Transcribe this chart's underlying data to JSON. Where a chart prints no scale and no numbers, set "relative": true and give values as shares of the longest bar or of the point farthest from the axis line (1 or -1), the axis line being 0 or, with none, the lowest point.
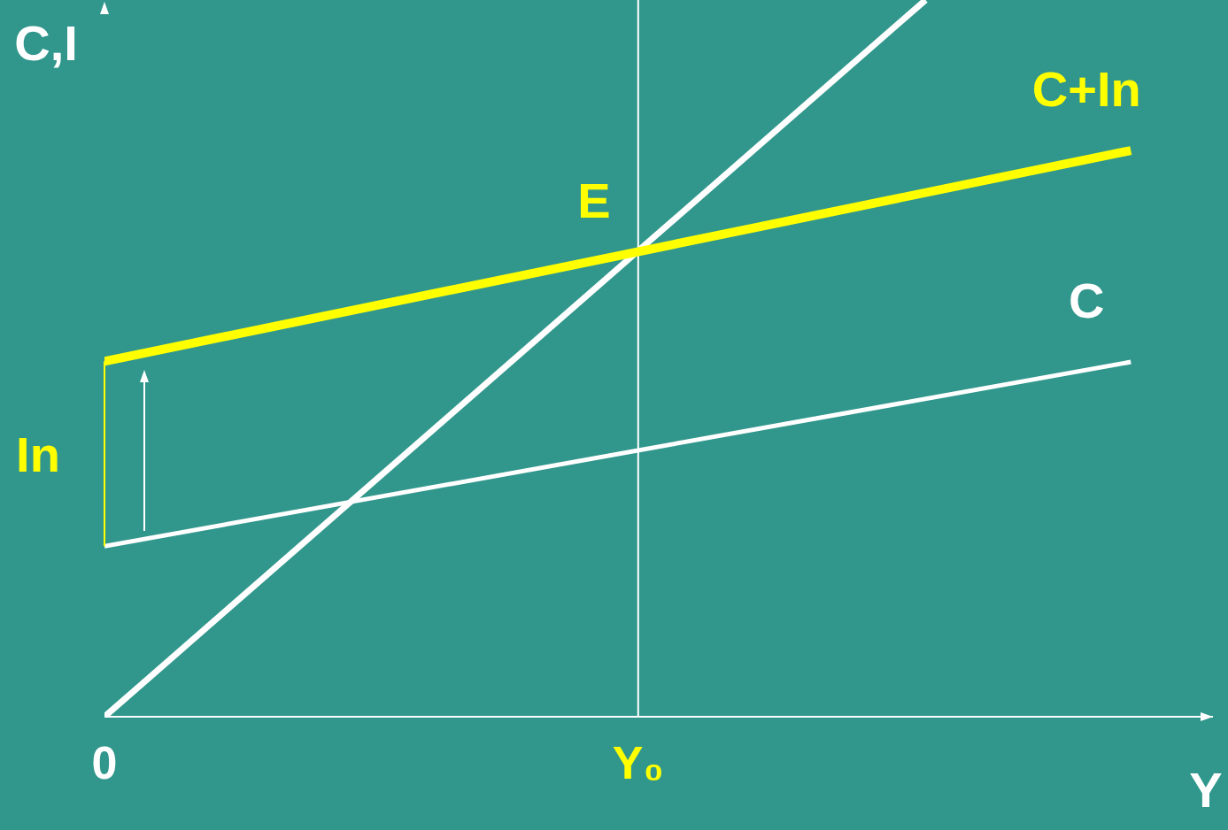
{
  "chart_data": {
    "type": "line",
    "relative": true,
    "xlabel": "Y",
    "ylabel": "C,I",
    "categories": [
      "0",
      null,
      null,
      null,
      null,
      null,
      null,
      null,
      null,
      null,
      null,
      null,
      null,
      "Y₀",
      null,
      null,
      null,
      null,
      null,
      null,
      null,
      null,
      null,
      null,
      null,
      null,
      null,
      null
    ],
    "series": [
      {
        "color": "#ffffff",
        "values": [
          0,
          null,
          null,
          null,
          null,
          null,
          null,
          null,
          null,
          null,
          null,
          null,
          null,
          null,
          null,
          null,
          null,
          null,
          null,
          null,
          1,
          null,
          null,
          null,
          null,
          null,
          null,
          null
        ]
      },
      {
        "name": "C+In",
        "color": "#ffff00",
        "values": [
          0.496,
          null,
          null,
          null,
          null,
          null,
          null,
          null,
          null,
          null,
          null,
          null,
          null,
          null,
          null,
          null,
          null,
          null,
          null,
          null,
          null,
          null,
          null,
          null,
          null,
          0.79,
          null,
          null
        ]
      },
      {
        "name": "C",
        "color": "#ffffff",
        "values": [
          0.238,
          null,
          null,
          null,
          null,
          null,
          null,
          null,
          null,
          null,
          null,
          null,
          null,
          null,
          null,
          null,
          null,
          null,
          null,
          null,
          null,
          null,
          null,
          null,
          null,
          0.495,
          null,
          null
        ]
      }
    ],
    "annotations": [
      {
        "text": "E",
        "x": "Y₀",
        "y": 0.65
      },
      "In"
    ],
    "ref_lines": [
      {
        "axis": "x",
        "value": "Y₀",
        "color": "#ffffff"
      }
    ],
    "marker": "none",
    "line_style": "solid"
  }
}
